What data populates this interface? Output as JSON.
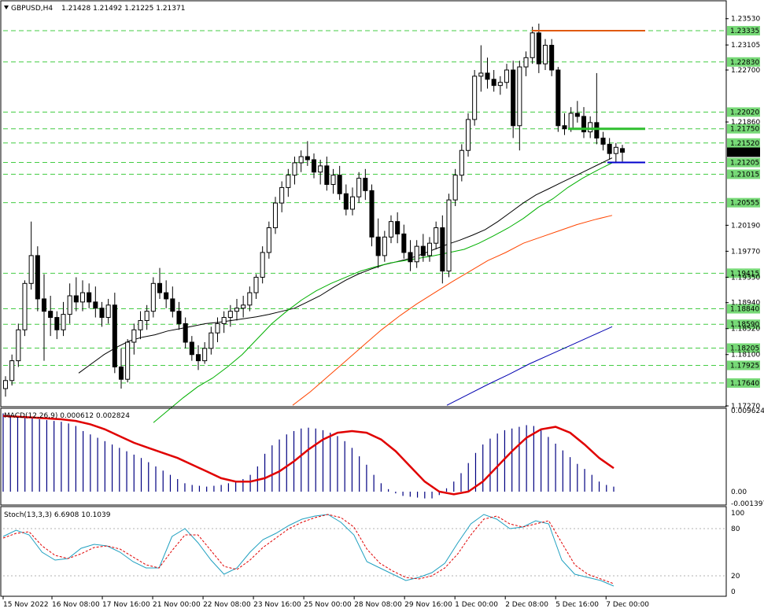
{
  "header": {
    "symbol": "GBPUSD,H4",
    "ohlc": "1.21428 1.21492 1.21225 1.21371"
  },
  "macd_header": "MACD(12,26,9) 0.000612 0.002824",
  "stoch_header": "Stoch(13,3,3) 6.6908 10.1039",
  "colors": {
    "bull_body": "#ffffff",
    "bear_body": "#000000",
    "ma_fast": "#000000",
    "ma_mid": "#00b000",
    "ma_slow": "#ff4500",
    "ma_long": "#0000b0",
    "level_line": "#44cc44",
    "level_label_bg": "#77d977",
    "macd_signal": "#e00000",
    "macd_hist": "#000080",
    "stoch_main": "#20a0c0",
    "stoch_signal": "#e00000",
    "resistance": "#e05a10",
    "support_green": "#2fbf2f",
    "support_blue": "#0000cc"
  },
  "chart_data": [
    {
      "type": "candlestick",
      "title": "GBPUSD,H4",
      "price_ticks": [
        "1.23530",
        "1.23105",
        "1.22700",
        "1.21860",
        "1.20190",
        "1.19770",
        "1.19350",
        "1.18940",
        "1.18520",
        "1.18100",
        "1.17270"
      ],
      "ylim": [
        1.1727,
        1.2373
      ],
      "levels": [
        {
          "value": 1.23335,
          "label": "1.23335"
        },
        {
          "value": 1.2283,
          "label": "1.22830"
        },
        {
          "value": 1.2202,
          "label": "1.22020"
        },
        {
          "value": 1.2175,
          "label": "1.21750"
        },
        {
          "value": 1.2152,
          "label": "1.21520"
        },
        {
          "value": 1.21205,
          "label": "1.21205"
        },
        {
          "value": 1.21015,
          "label": "1.21015"
        },
        {
          "value": 1.20555,
          "label": "1.20555"
        },
        {
          "value": 1.19415,
          "label": "1.19415"
        },
        {
          "value": 1.1884,
          "label": "1.18840"
        },
        {
          "value": 1.1859,
          "label": "1.18590"
        },
        {
          "value": 1.18205,
          "label": "1.18205"
        },
        {
          "value": 1.17925,
          "label": "1.17925"
        },
        {
          "value": 1.1764,
          "label": "1.17640"
        }
      ],
      "current_price": "1.21371",
      "x_labels": [
        "15 Nov 2022",
        "16 Nov 08:00",
        "17 Nov 16:00",
        "21 Nov 00:00",
        "22 Nov 08:00",
        "23 Nov 16:00",
        "25 Nov 00:00",
        "28 Nov 08:00",
        "29 Nov 16:00",
        "1 Dec 00:00",
        "2 Dec 08:00",
        "5 Dec 16:00",
        "7 Dec 00:00"
      ],
      "candles": [
        [
          1.1755,
          1.1775,
          1.1742,
          1.1768
        ],
        [
          1.1768,
          1.181,
          1.176,
          1.18
        ],
        [
          1.18,
          1.186,
          1.179,
          1.185
        ],
        [
          1.185,
          1.193,
          1.184,
          1.1925
        ],
        [
          1.1925,
          1.2025,
          1.1915,
          1.197
        ],
        [
          1.197,
          1.1985,
          1.188,
          1.19
        ],
        [
          1.19,
          1.194,
          1.18,
          1.188
        ],
        [
          1.188,
          1.1905,
          1.184,
          1.187
        ],
        [
          1.187,
          1.188,
          1.1835,
          1.185
        ],
        [
          1.185,
          1.1895,
          1.184,
          1.1875
        ],
        [
          1.1875,
          1.1925,
          1.186,
          1.1905
        ],
        [
          1.1905,
          1.1935,
          1.188,
          1.1895
        ],
        [
          1.1895,
          1.193,
          1.188,
          1.191
        ],
        [
          1.191,
          1.1925,
          1.1885,
          1.1895
        ],
        [
          1.1895,
          1.192,
          1.187,
          1.1885
        ],
        [
          1.1885,
          1.1895,
          1.1855,
          1.187
        ],
        [
          1.187,
          1.19,
          1.186,
          1.189
        ],
        [
          1.189,
          1.191,
          1.178,
          1.179
        ],
        [
          1.179,
          1.182,
          1.1755,
          1.177
        ],
        [
          1.177,
          1.1835,
          1.1765,
          1.183
        ],
        [
          1.183,
          1.186,
          1.181,
          1.185
        ],
        [
          1.185,
          1.188,
          1.1835,
          1.1865
        ],
        [
          1.1865,
          1.189,
          1.185,
          1.188
        ],
        [
          1.188,
          1.1935,
          1.187,
          1.1925
        ],
        [
          1.1925,
          1.195,
          1.19,
          1.191
        ],
        [
          1.191,
          1.193,
          1.1885,
          1.19
        ],
        [
          1.19,
          1.192,
          1.187,
          1.188
        ],
        [
          1.188,
          1.1895,
          1.185,
          1.186
        ],
        [
          1.186,
          1.187,
          1.182,
          1.183
        ],
        [
          1.183,
          1.184,
          1.18,
          1.181
        ],
        [
          1.181,
          1.1825,
          1.1785,
          1.18
        ],
        [
          1.18,
          1.183,
          1.1795,
          1.182
        ],
        [
          1.182,
          1.1855,
          1.181,
          1.1845
        ],
        [
          1.1845,
          1.187,
          1.183,
          1.186
        ],
        [
          1.186,
          1.188,
          1.1845,
          1.187
        ],
        [
          1.187,
          1.189,
          1.1855,
          1.188
        ],
        [
          1.188,
          1.19,
          1.1865,
          1.1885
        ],
        [
          1.1885,
          1.1905,
          1.187,
          1.189
        ],
        [
          1.189,
          1.192,
          1.188,
          1.191
        ],
        [
          1.191,
          1.194,
          1.19,
          1.1935
        ],
        [
          1.1935,
          1.1985,
          1.1925,
          1.1975
        ],
        [
          1.1975,
          1.2025,
          1.1965,
          1.2015
        ],
        [
          1.2015,
          1.2065,
          1.2005,
          1.2055
        ],
        [
          1.2055,
          1.209,
          1.204,
          1.208
        ],
        [
          1.208,
          1.211,
          1.2065,
          1.21
        ],
        [
          1.21,
          1.213,
          1.2085,
          1.212
        ],
        [
          1.212,
          1.214,
          1.2105,
          1.213
        ],
        [
          1.213,
          1.2155,
          1.2115,
          1.2125
        ],
        [
          1.2125,
          1.2135,
          1.2095,
          1.2105
        ],
        [
          1.2105,
          1.2125,
          1.2085,
          1.2115
        ],
        [
          1.2115,
          1.213,
          1.2075,
          1.2085
        ],
        [
          1.2085,
          1.211,
          1.207,
          1.21
        ],
        [
          1.21,
          1.2115,
          1.206,
          1.207
        ],
        [
          1.207,
          1.2085,
          1.2035,
          1.2045
        ],
        [
          1.2045,
          1.208,
          1.2035,
          1.2065
        ],
        [
          1.2065,
          1.2105,
          1.2055,
          1.2095
        ],
        [
          1.2095,
          1.211,
          1.206,
          1.2075
        ],
        [
          1.2075,
          1.2085,
          1.1985,
          1.2
        ],
        [
          1.2,
          1.203,
          1.195,
          1.197
        ],
        [
          1.197,
          1.201,
          1.196,
          1.2
        ],
        [
          1.2,
          1.2035,
          1.199,
          1.2025
        ],
        [
          1.2025,
          1.204,
          1.199,
          1.2005
        ],
        [
          1.2005,
          1.202,
          1.1965,
          1.1975
        ],
        [
          1.1975,
          1.1995,
          1.1945,
          1.196
        ],
        [
          1.196,
          1.1995,
          1.195,
          1.1985
        ],
        [
          1.1985,
          1.2005,
          1.196,
          1.197
        ],
        [
          1.197,
          1.2,
          1.196,
          1.199
        ],
        [
          1.199,
          1.2025,
          1.198,
          1.2015
        ],
        [
          1.2015,
          1.2035,
          1.1925,
          1.1945
        ],
        [
          1.1945,
          1.207,
          1.1935,
          1.206
        ],
        [
          1.206,
          1.211,
          1.205,
          1.21
        ],
        [
          1.21,
          1.215,
          1.209,
          1.214
        ],
        [
          1.214,
          1.22,
          1.213,
          1.219
        ],
        [
          1.219,
          1.227,
          1.218,
          1.226
        ],
        [
          1.226,
          1.231,
          1.2235,
          1.2265
        ],
        [
          1.2265,
          1.229,
          1.224,
          1.2255
        ],
        [
          1.2255,
          1.227,
          1.2235,
          1.2245
        ],
        [
          1.2245,
          1.226,
          1.223,
          1.225
        ],
        [
          1.225,
          1.228,
          1.224,
          1.227
        ],
        [
          1.227,
          1.2285,
          1.216,
          1.218
        ],
        [
          1.218,
          1.2285,
          1.214,
          1.2275
        ],
        [
          1.2275,
          1.23,
          1.226,
          1.229
        ],
        [
          1.229,
          1.234,
          1.228,
          1.233
        ],
        [
          1.233,
          1.2345,
          1.2265,
          1.228
        ],
        [
          1.228,
          1.232,
          1.227,
          1.231
        ],
        [
          1.231,
          1.232,
          1.226,
          1.227
        ],
        [
          1.227,
          1.2275,
          1.217,
          1.218
        ],
        [
          1.218,
          1.22,
          1.2165,
          1.2175
        ],
        [
          1.2175,
          1.221,
          1.217,
          1.22
        ],
        [
          1.22,
          1.222,
          1.2185,
          1.2195
        ],
        [
          1.2195,
          1.221,
          1.216,
          1.217
        ],
        [
          1.217,
          1.2195,
          1.216,
          1.2185
        ],
        [
          1.2185,
          1.2265,
          1.215,
          1.216
        ],
        [
          1.216,
          1.217,
          1.214,
          1.215
        ],
        [
          1.215,
          1.216,
          1.2125,
          1.2135
        ],
        [
          1.2135,
          1.2152,
          1.212,
          1.2145
        ],
        [
          1.2143,
          1.2149,
          1.2122,
          1.2137
        ]
      ],
      "ma_fast": [
        1.178,
        1.1795,
        1.181,
        1.1822,
        1.1832,
        1.1838,
        1.1842,
        1.1848,
        1.1852,
        1.1856,
        1.186,
        1.1862,
        1.1865,
        1.1868,
        1.1871,
        1.1875,
        1.188,
        1.1885,
        1.1895,
        1.1905,
        1.1918,
        1.193,
        1.194,
        1.1948,
        1.1955,
        1.196,
        1.1965,
        1.1972,
        1.198,
        1.1988,
        1.1995,
        1.2003,
        1.2012,
        1.2025,
        1.204,
        1.2055,
        1.2068,
        1.2078,
        1.2088,
        1.2098,
        1.2108,
        1.2118,
        1.2128
      ],
      "ma_mid": [
        1.17,
        1.172,
        1.174,
        1.1758,
        1.1772,
        1.179,
        1.181,
        1.1835,
        1.186,
        1.188,
        1.1898,
        1.1913,
        1.1925,
        1.1935,
        1.1945,
        1.1952,
        1.1958,
        1.1962,
        1.1966,
        1.197,
        1.1975,
        1.198,
        1.199,
        1.2002,
        1.2015,
        1.203,
        1.2048,
        1.2062,
        1.208,
        1.2095,
        1.2108,
        1.212
      ],
      "ma_slow": [
        1.1728,
        1.175,
        1.1775,
        1.18,
        1.1825,
        1.185,
        1.1872,
        1.1892,
        1.191,
        1.1928,
        1.1945,
        1.1962,
        1.1975,
        1.199,
        1.2,
        1.201,
        1.202,
        1.2028,
        1.2035
      ],
      "ma_long": [
        1.1728,
        1.1745,
        1.1762,
        1.1778,
        1.1795,
        1.181,
        1.1825,
        1.184,
        1.1855
      ]
    },
    {
      "type": "bar",
      "title": "MACD(12,26,9) 0.000612 0.002824",
      "ylim": [
        -0.001397,
        0.009624
      ],
      "ticks": [
        "0.009624",
        "0.00",
        "-0.001397"
      ],
      "histogram": [
        0.0093,
        0.0091,
        0.0089,
        0.0088,
        0.0087,
        0.0086,
        0.0085,
        0.0084,
        0.0083,
        0.0081,
        0.0078,
        0.0072,
        0.0068,
        0.0064,
        0.006,
        0.0056,
        0.0052,
        0.0048,
        0.0044,
        0.004,
        0.0035,
        0.003,
        0.0025,
        0.002,
        0.0015,
        0.001,
        0.0008,
        0.0007,
        0.0006,
        0.0007,
        0.0008,
        0.001,
        0.0012,
        0.0015,
        0.002,
        0.003,
        0.0045,
        0.0055,
        0.0062,
        0.0068,
        0.0072,
        0.0075,
        0.0076,
        0.0075,
        0.0073,
        0.007,
        0.0066,
        0.006,
        0.0052,
        0.0042,
        0.0032,
        0.002,
        0.001,
        0.0003,
        -0.0002,
        -0.0005,
        -0.0006,
        -0.0007,
        -0.0008,
        -0.0008,
        -0.0004,
        0.0004,
        0.0012,
        0.0022,
        0.0034,
        0.0046,
        0.0056,
        0.0063,
        0.0069,
        0.0073,
        0.0075,
        0.0077,
        0.0079,
        0.0078,
        0.0073,
        0.0065,
        0.0057,
        0.0049,
        0.0041,
        0.0033,
        0.0027,
        0.002,
        0.0012,
        0.0008,
        0.0006
      ],
      "signal": [
        0.009,
        0.0089,
        0.0088,
        0.0087,
        0.0086,
        0.0084,
        0.008,
        0.0074,
        0.0066,
        0.0058,
        0.0052,
        0.0046,
        0.004,
        0.0032,
        0.0024,
        0.0016,
        0.0012,
        0.0012,
        0.0016,
        0.0024,
        0.0036,
        0.005,
        0.0062,
        0.007,
        0.0072,
        0.007,
        0.0062,
        0.0048,
        0.003,
        0.0012,
        0.0,
        -0.0003,
        0.0,
        0.0012,
        0.003,
        0.0048,
        0.0064,
        0.0074,
        0.0077,
        0.007,
        0.0056,
        0.004,
        0.0028
      ]
    },
    {
      "type": "line",
      "title": "Stoch(13,3,3) 6.6908 10.1039",
      "ylim": [
        0,
        100
      ],
      "ticks": [
        "100",
        "80",
        "20",
        "0"
      ],
      "main": [
        70,
        78,
        72,
        50,
        40,
        42,
        55,
        60,
        58,
        50,
        38,
        30,
        30,
        70,
        80,
        62,
        40,
        22,
        30,
        50,
        66,
        74,
        84,
        92,
        96,
        98,
        88,
        72,
        38,
        30,
        22,
        14,
        18,
        24,
        36,
        62,
        86,
        98,
        92,
        80,
        82,
        90,
        86,
        40,
        22,
        18,
        14,
        7
      ],
      "signal": [
        68,
        74,
        76,
        58,
        46,
        42,
        48,
        56,
        58,
        54,
        44,
        34,
        30,
        52,
        72,
        72,
        52,
        32,
        28,
        40,
        56,
        68,
        80,
        88,
        94,
        98,
        94,
        82,
        54,
        36,
        26,
        18,
        16,
        20,
        30,
        48,
        72,
        92,
        96,
        86,
        82,
        86,
        90,
        62,
        34,
        22,
        16,
        10
      ]
    }
  ]
}
